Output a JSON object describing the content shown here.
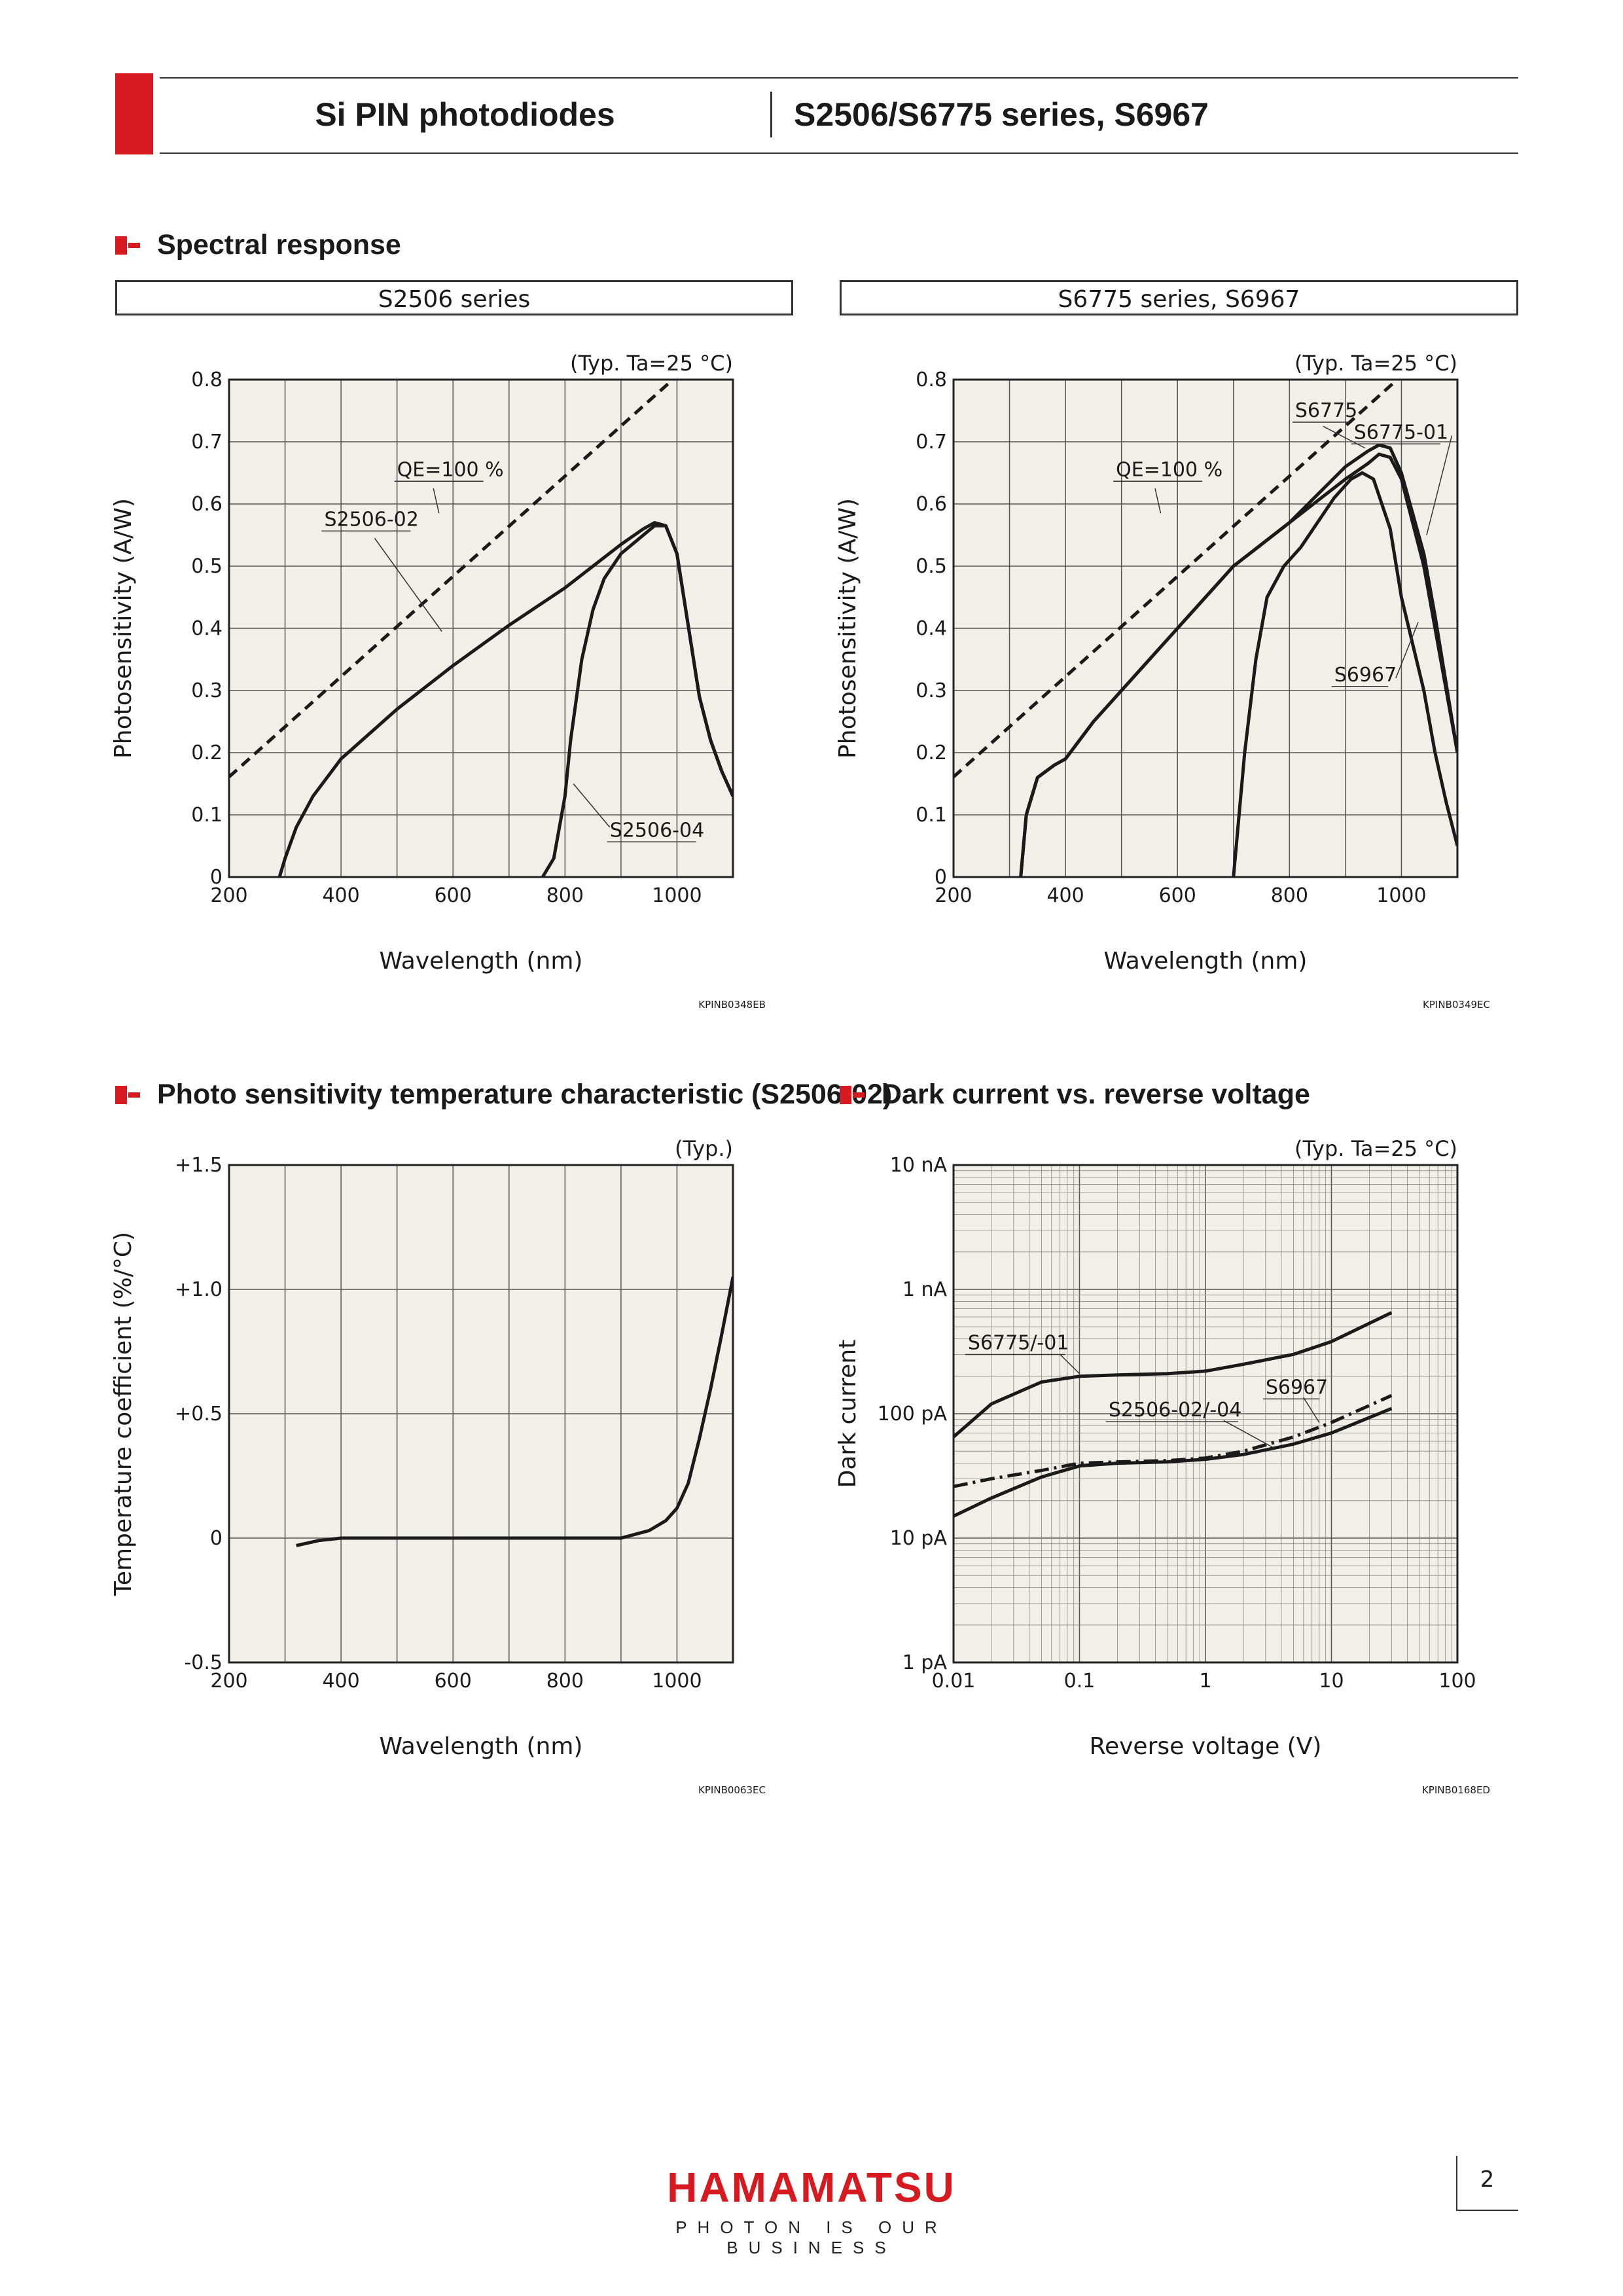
{
  "header": {
    "product_family": "Si PIN photodiodes",
    "models": "S2506/S6775 series, S6967"
  },
  "sections": {
    "spectral": "Spectral response",
    "temp": "Photo sensitivity temperature characteristic (S2506-02)",
    "dark": "Dark current vs. reverse voltage"
  },
  "labels": {
    "left_box": "S2506 series",
    "right_box": "S6775 series, S6967"
  },
  "footer": {
    "logo": "HAMAMATSU",
    "tagline": "PHOTON IS OUR BUSINESS",
    "page": "2"
  },
  "colors": {
    "brand_red": "#d71920",
    "plot_bg": "#f0efe8",
    "grid": "#555555"
  },
  "chart_data": [
    {
      "id": "spectral_s2506",
      "type": "line",
      "note": "(Typ. Ta=25 °C)",
      "xlabel": "Wavelength (nm)",
      "ylabel": "Photosensitivity (A/W)",
      "xlim": [
        200,
        1100
      ],
      "ylim": [
        0,
        0.8
      ],
      "xticks": [
        "200",
        "400",
        "600",
        "800",
        "1000"
      ],
      "yticks": [
        "0",
        "0.1",
        "0.2",
        "0.3",
        "0.4",
        "0.5",
        "0.6",
        "0.7",
        "0.8"
      ],
      "code": "KPINB0348EB",
      "series": [
        {
          "name": "QE=100 %",
          "style": "dashed",
          "x": [
            200,
            1000
          ],
          "y": [
            0.161,
            0.806
          ]
        },
        {
          "name": "S2506-02",
          "style": "solid",
          "x": [
            290,
            300,
            320,
            350,
            400,
            450,
            500,
            600,
            700,
            800,
            850,
            900,
            940,
            960,
            980,
            1000,
            1040,
            1060,
            1080,
            1100
          ],
          "y": [
            0.0,
            0.03,
            0.08,
            0.13,
            0.19,
            0.23,
            0.27,
            0.34,
            0.405,
            0.465,
            0.5,
            0.535,
            0.56,
            0.57,
            0.565,
            0.52,
            0.29,
            0.22,
            0.17,
            0.13
          ]
        },
        {
          "name": "S2506-04",
          "style": "solid",
          "x": [
            760,
            780,
            800,
            810,
            830,
            850,
            870,
            900,
            940,
            960,
            980,
            1000,
            1040,
            1060,
            1080,
            1100
          ],
          "y": [
            0.0,
            0.03,
            0.13,
            0.22,
            0.35,
            0.43,
            0.48,
            0.52,
            0.55,
            0.565,
            0.565,
            0.52,
            0.29,
            0.22,
            0.17,
            0.13
          ]
        }
      ],
      "annotations": [
        "QE=100 %",
        "S2506-02",
        "S2506-04"
      ]
    },
    {
      "id": "spectral_s6775",
      "type": "line",
      "note": "(Typ. Ta=25 °C)",
      "xlabel": "Wavelength (nm)",
      "ylabel": "Photosensitivity (A/W)",
      "xlim": [
        200,
        1100
      ],
      "ylim": [
        0,
        0.8
      ],
      "xticks": [
        "200",
        "400",
        "600",
        "800",
        "1000"
      ],
      "yticks": [
        "0",
        "0.1",
        "0.2",
        "0.3",
        "0.4",
        "0.5",
        "0.6",
        "0.7",
        "0.8"
      ],
      "code": "KPINB0349EC",
      "series": [
        {
          "name": "QE=100 %",
          "style": "dashed",
          "x": [
            200,
            1000
          ],
          "y": [
            0.161,
            0.806
          ]
        },
        {
          "name": "S6775",
          "style": "solid",
          "x": [
            320,
            330,
            350,
            380,
            400,
            450,
            500,
            600,
            700,
            800,
            900,
            940,
            960,
            980,
            1000,
            1040,
            1060,
            1080,
            1100
          ],
          "y": [
            0.0,
            0.1,
            0.16,
            0.18,
            0.19,
            0.25,
            0.3,
            0.4,
            0.5,
            0.57,
            0.64,
            0.665,
            0.68,
            0.675,
            0.64,
            0.5,
            0.4,
            0.3,
            0.2
          ]
        },
        {
          "name": "S6775-01",
          "style": "solid",
          "x": [
            320,
            330,
            350,
            380,
            400,
            450,
            500,
            600,
            700,
            800,
            900,
            940,
            960,
            980,
            1000,
            1040,
            1060,
            1080,
            1100
          ],
          "y": [
            0.0,
            0.1,
            0.16,
            0.18,
            0.19,
            0.25,
            0.3,
            0.4,
            0.5,
            0.57,
            0.66,
            0.685,
            0.695,
            0.69,
            0.65,
            0.52,
            0.42,
            0.31,
            0.2
          ]
        },
        {
          "name": "S6967",
          "style": "solid",
          "x": [
            700,
            720,
            740,
            760,
            790,
            820,
            850,
            880,
            910,
            930,
            950,
            980,
            1000,
            1040,
            1060,
            1080,
            1100
          ],
          "y": [
            0.0,
            0.2,
            0.35,
            0.45,
            0.5,
            0.53,
            0.57,
            0.61,
            0.64,
            0.65,
            0.64,
            0.56,
            0.45,
            0.3,
            0.2,
            0.12,
            0.05
          ]
        }
      ],
      "annotations": [
        "QE=100 %",
        "S6775",
        "S6775-01",
        "S6967"
      ]
    },
    {
      "id": "temp_coeff",
      "type": "line",
      "note": "(Typ.)",
      "xlabel": "Wavelength (nm)",
      "ylabel": "Temperature coefficient (%/°C)",
      "xlim": [
        200,
        1100
      ],
      "ylim": [
        -0.5,
        1.5
      ],
      "xticks": [
        "200",
        "400",
        "600",
        "800",
        "1000"
      ],
      "yticks": [
        "-0.5",
        "0",
        "+0.5",
        "+1.0",
        "+1.5"
      ],
      "code": "KPINB0063EC",
      "series": [
        {
          "name": "",
          "style": "solid",
          "x": [
            320,
            360,
            400,
            500,
            600,
            700,
            800,
            900,
            950,
            980,
            1000,
            1020,
            1040,
            1060,
            1080,
            1100
          ],
          "y": [
            -0.03,
            -0.01,
            0.0,
            0.0,
            0.0,
            0.0,
            0.0,
            0.0,
            0.03,
            0.07,
            0.12,
            0.22,
            0.4,
            0.6,
            0.82,
            1.05
          ]
        }
      ]
    },
    {
      "id": "dark_current",
      "type": "line",
      "note": "(Typ. Ta=25 °C)",
      "xlabel": "Reverse voltage (V)",
      "ylabel": "Dark current",
      "xscale": "log",
      "yscale": "log",
      "xlim": [
        0.01,
        100
      ],
      "ylim": [
        1e-12,
        1e-08
      ],
      "xticks": [
        "0.01",
        "0.1",
        "1",
        "10",
        "100"
      ],
      "yticks": [
        "1 pA",
        "10 pA",
        "100 pA",
        "1 nA",
        "10 nA"
      ],
      "code": "KPINB0168ED",
      "series": [
        {
          "name": "S6775/-01",
          "style": "solid",
          "x": [
            0.01,
            0.02,
            0.05,
            0.1,
            0.2,
            0.5,
            1,
            2,
            5,
            10,
            30
          ],
          "y": [
            6.5e-11,
            1.2e-10,
            1.8e-10,
            2e-10,
            2.05e-10,
            2.1e-10,
            2.2e-10,
            2.5e-10,
            3e-10,
            3.8e-10,
            6.5e-10
          ]
        },
        {
          "name": "S6967",
          "style": "dashdot",
          "x": [
            0.01,
            0.02,
            0.05,
            0.1,
            0.2,
            0.5,
            1,
            2,
            5,
            10,
            30
          ],
          "y": [
            2.6e-11,
            3e-11,
            3.5e-11,
            4e-11,
            4.1e-11,
            4.2e-11,
            4.4e-11,
            5e-11,
            6.5e-11,
            8.5e-11,
            1.4e-10
          ]
        },
        {
          "name": "S2506-02/-04",
          "style": "solid",
          "x": [
            0.01,
            0.02,
            0.05,
            0.1,
            0.2,
            0.5,
            1,
            2,
            5,
            10,
            30
          ],
          "y": [
            1.5e-11,
            2.1e-11,
            3.1e-11,
            3.8e-11,
            4e-11,
            4.1e-11,
            4.3e-11,
            4.7e-11,
            5.7e-11,
            7e-11,
            1.1e-10
          ]
        }
      ],
      "annotations": [
        "S6775/-01",
        "S6967",
        "S2506-02/-04"
      ]
    }
  ]
}
